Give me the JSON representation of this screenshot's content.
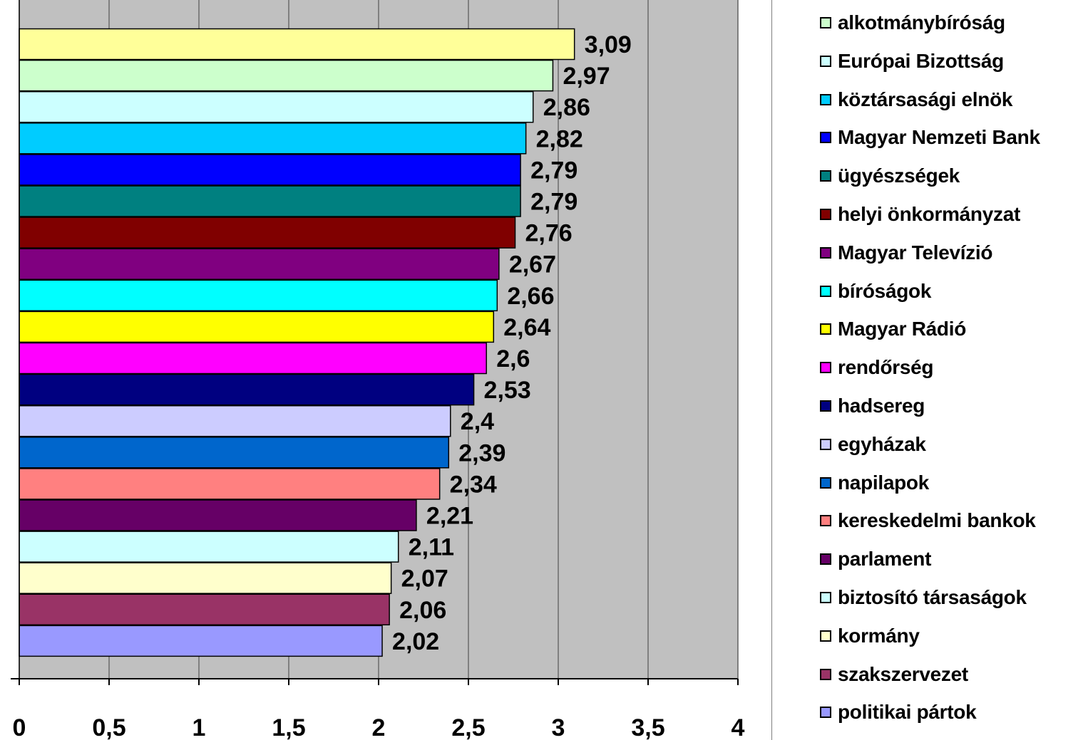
{
  "chart_data": {
    "type": "bar",
    "orientation": "horizontal",
    "title": "",
    "xlabel": "",
    "ylabel": "",
    "xlim": [
      0,
      4
    ],
    "x_ticks": [
      "0",
      "0,5",
      "1",
      "1,5",
      "2",
      "2,5",
      "3",
      "3,5",
      "4"
    ],
    "grid": true,
    "legend_position": "right",
    "plot_background": "#C0C0C0",
    "bar_border": "#000000",
    "bars": [
      {
        "label": "Magyar Rádió",
        "value": 3.09,
        "value_label": "3,09",
        "color": "#FFFF99"
      },
      {
        "label": "alkotmánybíróság",
        "value": 2.97,
        "value_label": "2,97",
        "color": "#CCFFCC"
      },
      {
        "label": "Európai Bizottság",
        "value": 2.86,
        "value_label": "2,86",
        "color": "#CCFFFF"
      },
      {
        "label": "köztársasági elnök",
        "value": 2.82,
        "value_label": "2,82",
        "color": "#00CCFF"
      },
      {
        "label": "Magyar Nemzeti Bank",
        "value": 2.79,
        "value_label": "2,79",
        "color": "#0000FF"
      },
      {
        "label": "ügyészségek",
        "value": 2.79,
        "value_label": "2,79",
        "color": "#008080"
      },
      {
        "label": "helyi önkormányzat",
        "value": 2.76,
        "value_label": "2,76",
        "color": "#800000"
      },
      {
        "label": "Magyar Televízió",
        "value": 2.67,
        "value_label": "2,67",
        "color": "#800080"
      },
      {
        "label": "bíróságok",
        "value": 2.66,
        "value_label": "2,66",
        "color": "#00FFFF"
      },
      {
        "label": "Magyar Rádió",
        "value": 2.64,
        "value_label": "2,64",
        "color": "#FFFF00"
      },
      {
        "label": "rendőrség",
        "value": 2.6,
        "value_label": "2,6",
        "color": "#FF00FF"
      },
      {
        "label": "hadsereg",
        "value": 2.53,
        "value_label": "2,53",
        "color": "#000080"
      },
      {
        "label": "egyházak",
        "value": 2.4,
        "value_label": "2,4",
        "color": "#CCCCFF"
      },
      {
        "label": "napilapok",
        "value": 2.39,
        "value_label": "2,39",
        "color": "#0066CC"
      },
      {
        "label": "kereskedelmi bankok",
        "value": 2.34,
        "value_label": "2,34",
        "color": "#FF8080"
      },
      {
        "label": "parlament",
        "value": 2.21,
        "value_label": "2,21",
        "color": "#660066"
      },
      {
        "label": "biztosító társaságok",
        "value": 2.11,
        "value_label": "2,11",
        "color": "#CCFFFF"
      },
      {
        "label": "kormány",
        "value": 2.07,
        "value_label": "2,07",
        "color": "#FFFFCC"
      },
      {
        "label": "szakszervezet",
        "value": 2.06,
        "value_label": "2,06",
        "color": "#993366"
      },
      {
        "label": "politikai pártok",
        "value": 2.02,
        "value_label": "2,02",
        "color": "#9999FF"
      }
    ],
    "legend": [
      {
        "label": "alkotmánybíróság",
        "color": "#CCFFCC"
      },
      {
        "label": "Európai Bizottság",
        "color": "#CCFFFF"
      },
      {
        "label": "köztársasági elnök",
        "color": "#00CCFF"
      },
      {
        "label": "Magyar Nemzeti Bank",
        "color": "#0000FF"
      },
      {
        "label": "ügyészségek",
        "color": "#008080"
      },
      {
        "label": "helyi önkormányzat",
        "color": "#800000"
      },
      {
        "label": "Magyar Televízió",
        "color": "#800080"
      },
      {
        "label": "bíróságok",
        "color": "#00FFFF"
      },
      {
        "label": "Magyar Rádió",
        "color": "#FFFF00"
      },
      {
        "label": "rendőrség",
        "color": "#FF00FF"
      },
      {
        "label": "hadsereg",
        "color": "#000080"
      },
      {
        "label": "egyházak",
        "color": "#CCCCFF"
      },
      {
        "label": "napilapok",
        "color": "#0066CC"
      },
      {
        "label": "kereskedelmi bankok",
        "color": "#FF8080"
      },
      {
        "label": "parlament",
        "color": "#660066"
      },
      {
        "label": "biztosító társaságok",
        "color": "#CCFFFF"
      },
      {
        "label": "kormány",
        "color": "#FFFFCC"
      },
      {
        "label": "szakszervezet",
        "color": "#993366"
      },
      {
        "label": "politikai pártok",
        "color": "#9999FF"
      }
    ]
  }
}
